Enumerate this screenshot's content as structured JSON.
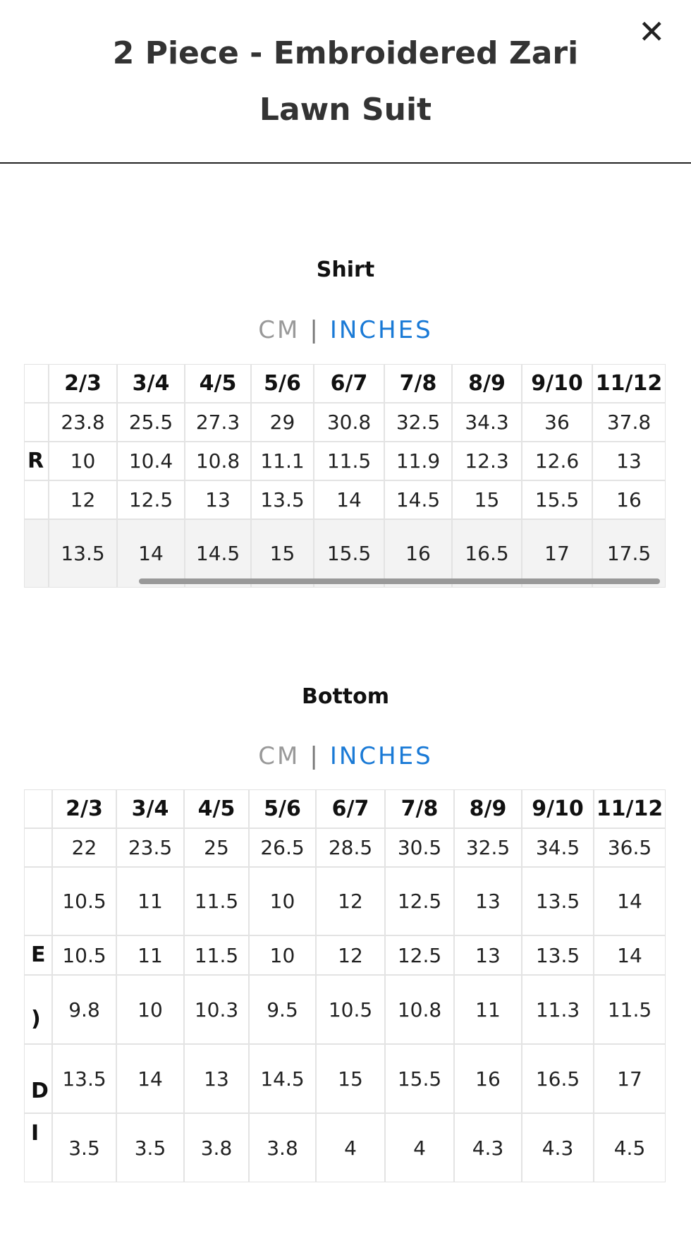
{
  "header": {
    "title": "2 Piece - Embroidered Zari Lawn Suit",
    "close": "✕"
  },
  "sections": [
    {
      "title": "Shirt",
      "units": {
        "cm": "CM",
        "separator": "|",
        "inches": "INCHES"
      },
      "table": {
        "columns": [
          "2/3",
          "3/4",
          "4/5",
          "5/6",
          "6/7",
          "7/8",
          "8/9",
          "9/10",
          "11/12"
        ],
        "rows": [
          {
            "cells": [
              "23.8",
              "25.5",
              "27.3",
              "29",
              "30.8",
              "32.5",
              "34.3",
              "36",
              "37.8"
            ]
          },
          {
            "label": "R",
            "cells": [
              "10",
              "10.4",
              "10.8",
              "11.1",
              "11.5",
              "11.9",
              "12.3",
              "12.6",
              "13"
            ]
          },
          {
            "cells": [
              "12",
              "12.5",
              "13",
              "13.5",
              "14",
              "14.5",
              "15",
              "15.5",
              "16"
            ]
          },
          {
            "cells": [
              "13.5",
              "14",
              "14.5",
              "15",
              "15.5",
              "16",
              "16.5",
              "17",
              "17.5"
            ]
          }
        ]
      }
    },
    {
      "title": "Bottom",
      "units": {
        "cm": "CM",
        "separator": "|",
        "inches": "INCHES"
      },
      "table": {
        "columns": [
          "2/3",
          "3/4",
          "4/5",
          "5/6",
          "6/7",
          "7/8",
          "8/9",
          "9/10",
          "11/12"
        ],
        "rows": [
          {
            "cells": [
              "22",
              "23.5",
              "25",
              "26.5",
              "28.5",
              "30.5",
              "32.5",
              "34.5",
              "36.5"
            ]
          },
          {
            "cells": [
              "10.5",
              "11",
              "11.5",
              "10",
              "12",
              "12.5",
              "13",
              "13.5",
              "14"
            ]
          },
          {
            "label": "E",
            "cells": [
              "10.5",
              "11",
              "11.5",
              "10",
              "12",
              "12.5",
              "13",
              "13.5",
              "14"
            ]
          },
          {
            "label": ")",
            "cells": [
              "9.8",
              "10",
              "10.3",
              "9.5",
              "10.5",
              "10.8",
              "11",
              "11.3",
              "11.5"
            ]
          },
          {
            "label": "D",
            "cells": [
              "13.5",
              "14",
              "13",
              "14.5",
              "15",
              "15.5",
              "16",
              "16.5",
              "17"
            ]
          },
          {
            "label": "I",
            "cells": [
              "3.5",
              "3.5",
              "3.8",
              "3.8",
              "4",
              "4",
              "4.3",
              "4.3",
              "4.5"
            ]
          }
        ]
      }
    }
  ]
}
